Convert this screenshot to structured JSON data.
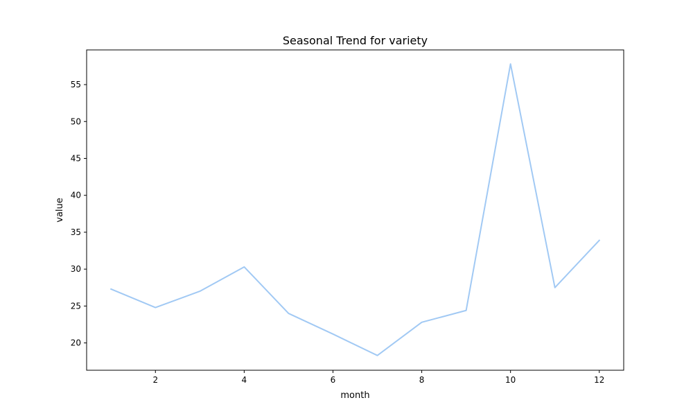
{
  "chart_data": {
    "type": "line",
    "title": "Seasonal Trend for variety",
    "xlabel": "month",
    "ylabel": "value",
    "x": [
      1,
      2,
      3,
      4,
      5,
      6,
      7,
      8,
      9,
      10,
      11,
      12
    ],
    "series": [
      {
        "values": [
          27.3,
          24.8,
          27.0,
          30.3,
          24.0,
          21.2,
          18.3,
          22.8,
          24.4,
          57.8,
          27.5,
          33.9
        ],
        "color": "#a1c9f4"
      }
    ],
    "xlim": [
      0.45,
      12.55
    ],
    "ylim": [
      16.3,
      59.7
    ],
    "xticks": [
      2,
      4,
      6,
      8,
      10,
      12
    ],
    "yticks": [
      20,
      25,
      30,
      35,
      40,
      45,
      50,
      55
    ],
    "grid": false,
    "legend": "none"
  }
}
